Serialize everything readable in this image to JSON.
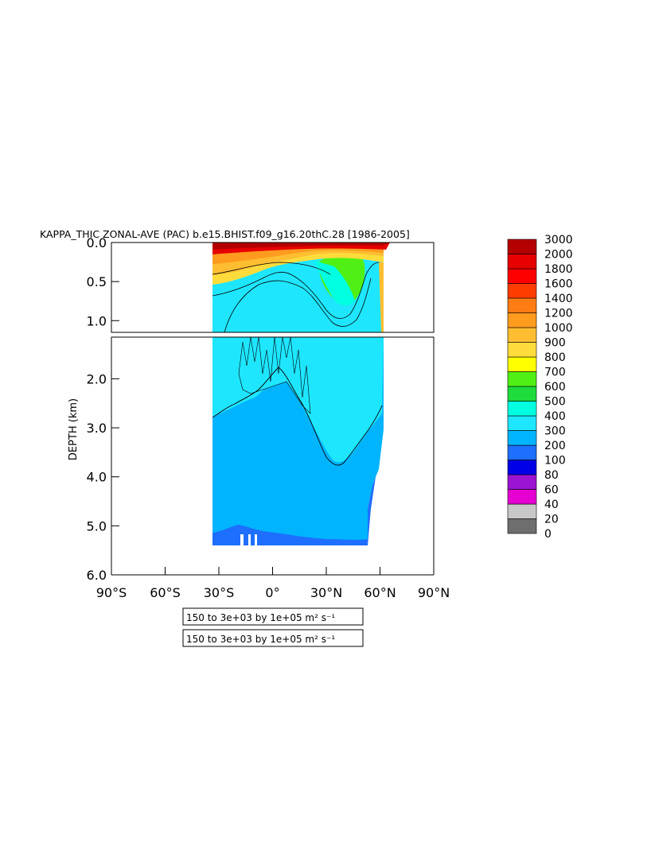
{
  "chart_data": {
    "type": "heatmap",
    "title": "KAPPA_THIC ZONAL-AVE (PAC) b.e15.BHIST.f09_g16.20thC.28 [1986-2005]",
    "xlabel": "",
    "ylabel": "DEPTH (km)",
    "xlim": [
      -90,
      90
    ],
    "ylim": [
      0,
      6
    ],
    "depth_split_km": 1.15,
    "x_ticks": [
      {
        "value": -90,
        "label": "90°S"
      },
      {
        "value": -60,
        "label": "60°S"
      },
      {
        "value": -30,
        "label": "30°S"
      },
      {
        "value": 0,
        "label": "0°"
      },
      {
        "value": 30,
        "label": "30°N"
      },
      {
        "value": 60,
        "label": "60°N"
      },
      {
        "value": 90,
        "label": "90°N"
      }
    ],
    "y_ticks_upper": [
      {
        "value": 0.0,
        "label": "0.0"
      },
      {
        "value": 0.5,
        "label": "0.5"
      },
      {
        "value": 1.0,
        "label": "1.0"
      }
    ],
    "y_ticks_lower": [
      {
        "value": 2.0,
        "label": "2.0"
      },
      {
        "value": 3.0,
        "label": "3.0"
      },
      {
        "value": 4.0,
        "label": "4.0"
      },
      {
        "value": 5.0,
        "label": "5.0"
      },
      {
        "value": 6.0,
        "label": "6.0"
      }
    ],
    "colorbar": {
      "levels": [
        0,
        20,
        40,
        60,
        80,
        100,
        200,
        300,
        400,
        500,
        600,
        700,
        800,
        900,
        1000,
        1200,
        1400,
        1600,
        1800,
        2000,
        3000
      ],
      "colors": [
        "#6e6e6e",
        "#c8c8c8",
        "#e600d2",
        "#9b14d2",
        "#0000e6",
        "#1e6eff",
        "#00b4ff",
        "#1ee6ff",
        "#00ffe1",
        "#1edc3c",
        "#50f014",
        "#ffff00",
        "#ffdc3c",
        "#ffbe32",
        "#ff9b1e",
        "#ff7d14",
        "#ff3c00",
        "#ff0000",
        "#e60000",
        "#b40000"
      ]
    },
    "domain": {
      "lat_south": -34,
      "lat_north": 62,
      "max_depth_km": 5.35
    },
    "annotations": [
      "150 to 3e+03 by 1e+05 m² s⁻¹",
      "150 to 3e+03 by 1e+05 m² s⁻¹"
    ]
  }
}
